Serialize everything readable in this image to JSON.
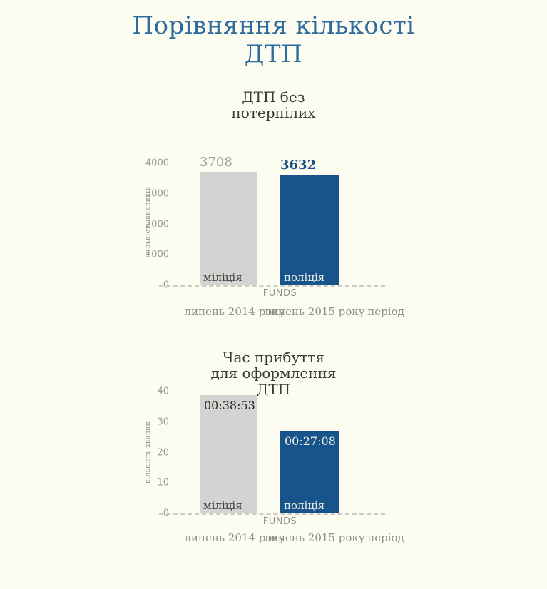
{
  "page": {
    "title": "Порівняння кількості\nДТП",
    "background_color": "#FDFCF1",
    "title_color": "#2E6B9D"
  },
  "colors": {
    "bar_gray": "#D3D3D2",
    "bar_blue": "#17548C",
    "accent_text_blue": "#1A4F80",
    "muted_gray_text": "#9B9B97",
    "dashed_baseline": "#CCCBC2"
  },
  "chart_data": [
    {
      "type": "bar",
      "title": "ДТП без\nпотерпілих",
      "ylabel": "кількість викликів",
      "xlabel": "FUNDS",
      "x_axis_title": "період",
      "ylim": [
        0,
        4000
      ],
      "yticks": [
        4000,
        3000,
        2000,
        1000,
        0
      ],
      "grid": false,
      "legend": "none",
      "categories": [
        "липень 2014 року",
        "липень 2015 року"
      ],
      "series": [
        {
          "name": "міліція",
          "value": 3708,
          "label": "3708",
          "color": "#D3D3D2"
        },
        {
          "name": "поліція",
          "value": 3632,
          "label": "3632",
          "color": "#17548C"
        }
      ]
    },
    {
      "type": "bar",
      "title": "Час прибуття\nдля оформлення\nДТП",
      "ylabel": "кількість хвилин",
      "xlabel": "FUNDS",
      "x_axis_title": "період",
      "ylim": [
        0,
        40
      ],
      "yticks": [
        40,
        30,
        20,
        10,
        0
      ],
      "grid": false,
      "legend": "none",
      "categories": [
        "липень 2014 року",
        "липень 2015 року"
      ],
      "series": [
        {
          "name": "міліція",
          "value": 38.88,
          "label": "00:38:53",
          "color": "#D3D3D2"
        },
        {
          "name": "поліція",
          "value": 27.13,
          "label": "00:27:08",
          "color": "#17548C"
        }
      ]
    }
  ]
}
